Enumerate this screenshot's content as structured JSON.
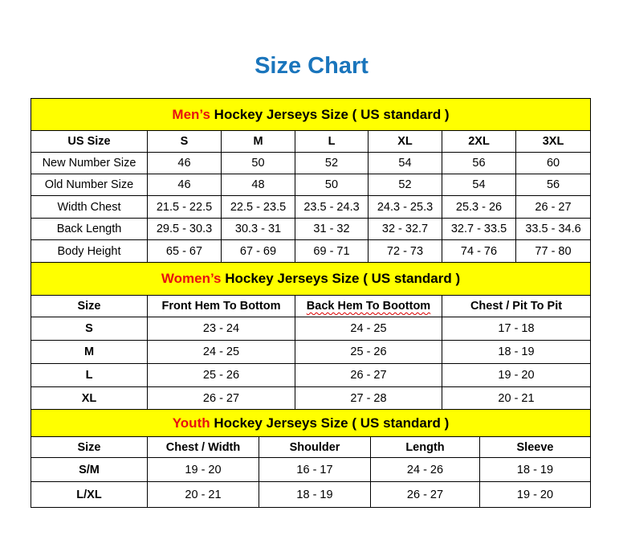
{
  "title": "Size Chart",
  "colors": {
    "title": "#1a75bc",
    "header_bg": "#ffff00",
    "accent": "#e81010"
  },
  "mens": {
    "heading_accent": "Men’s",
    "heading_rest": " Hockey Jerseys Size ( US standard )",
    "columns": [
      "US Size",
      "S",
      "M",
      "L",
      "XL",
      "2XL",
      "3XL"
    ],
    "rows": [
      [
        "New Number Size",
        "46",
        "50",
        "52",
        "54",
        "56",
        "60"
      ],
      [
        "Old Number Size",
        "46",
        "48",
        "50",
        "52",
        "54",
        "56"
      ],
      [
        "Width Chest",
        "21.5 - 22.5",
        "22.5 - 23.5",
        "23.5 - 24.3",
        "24.3 - 25.3",
        "25.3 - 26",
        "26 - 27"
      ],
      [
        "Back Length",
        "29.5 - 30.3",
        "30.3 - 31",
        "31 - 32",
        "32 - 32.7",
        "32.7 - 33.5",
        "33.5 - 34.6"
      ],
      [
        "Body Height",
        "65 - 67",
        "67 - 69",
        "69 - 71",
        "72 - 73",
        "74 - 76",
        "77 - 80"
      ]
    ]
  },
  "womens": {
    "heading_accent": "Women’s",
    "heading_rest": " Hockey Jerseys Size ( US standard )",
    "columns": [
      "Size",
      "Front Hem To Bottom",
      "Back Hem To Boottom",
      "Chest / Pit To Pit"
    ],
    "rows": [
      [
        "S",
        "23 - 24",
        "24 - 25",
        "17 - 18"
      ],
      [
        "M",
        "24 - 25",
        "25 - 26",
        "18 - 19"
      ],
      [
        "L",
        "25 - 26",
        "26 - 27",
        "19 - 20"
      ],
      [
        "XL",
        "26 - 27",
        "27 - 28",
        "20 - 21"
      ]
    ]
  },
  "youth": {
    "heading_accent": "Youth",
    "heading_rest": " Hockey Jerseys Size ( US standard )",
    "columns": [
      "Size",
      "Chest / Width",
      "Shoulder",
      "Length",
      "Sleeve"
    ],
    "rows": [
      [
        "S/M",
        "19 - 20",
        "16 - 17",
        "24 - 26",
        "18 - 19"
      ],
      [
        "L/XL",
        "20 - 21",
        "18 - 19",
        "26 - 27",
        "19 - 20"
      ]
    ]
  }
}
